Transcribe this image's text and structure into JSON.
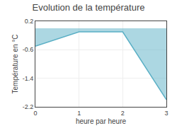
{
  "chart_data": {
    "type": "area",
    "title": "Evolution de la température",
    "xlabel": "heure par heure",
    "ylabel": "Température en °C",
    "x": [
      0,
      1,
      2,
      3
    ],
    "values": [
      -0.5,
      -0.1,
      -0.1,
      -2.0
    ],
    "color": "#5aafc5",
    "xlim": [
      0,
      3
    ],
    "xticks": [
      0,
      1,
      2,
      3
    ],
    "ylim": [
      -2.2,
      0.2
    ],
    "yticks": [
      0.2,
      -0.6,
      -1.4,
      -2.2
    ],
    "grid": true
  }
}
